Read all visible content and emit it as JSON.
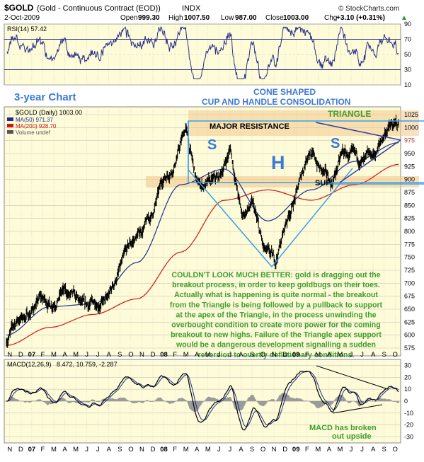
{
  "header": {
    "title_symbol": "$GOLD",
    "title_desc": "(Gold - Continuous Contract (EOD))",
    "title_exchange": "INDX",
    "date": "2-Oct-2009",
    "source": "© StockCharts.com",
    "ohlc": "Open 999.30  High 1007.50  Low 987.00  Close 1003.00  Chg +3.10 (+0.31%)",
    "ohlc_open_label": "Open",
    "ohlc_open": "999.30",
    "ohlc_high_label": "High",
    "ohlc_high": "1007.50",
    "ohlc_low_label": "Low",
    "ohlc_low": "987.00",
    "ohlc_close_label": "Close",
    "ohlc_close": "1003.00",
    "ohlc_chg_label": "Chg",
    "ohlc_chg": "+3.10 (+0.31%)",
    "up_arrow": "▲"
  },
  "rsi": {
    "label": "RSI(14) 57.42",
    "ticks": [
      "90",
      "70",
      "50",
      "30",
      "10"
    ]
  },
  "price": {
    "legend": [
      "$GOLD (Daily) 1003.00",
      "MA(50) 971.37",
      "MA(200) 928.70",
      "Volume undef"
    ],
    "legend_colors": [
      "#000000",
      "#1f2c8f",
      "#d41414",
      "#555555"
    ],
    "ticks": [
      "1025",
      "1000",
      "975",
      "950",
      "925",
      "900",
      "875",
      "850",
      "825",
      "800",
      "775",
      "750",
      "725",
      "700",
      "675",
      "650",
      "625",
      "600",
      "575"
    ],
    "highlight_tick": "975"
  },
  "macd": {
    "label_main": "MACD(12,26,9)",
    "label_values": "8.472, 10.759, -2.287",
    "ticks": [
      "30",
      "20",
      "10",
      "0",
      "-10",
      "-20",
      "-30"
    ]
  },
  "axis": {
    "months": [
      "N",
      "D",
      "07",
      "F",
      "M",
      "A",
      "M",
      "J",
      "J",
      "A",
      "S",
      "O",
      "N",
      "D",
      "08",
      "F",
      "M",
      "A",
      "M",
      "J",
      "J",
      "A",
      "S",
      "O",
      "N",
      "D",
      "09",
      "F",
      "M",
      "A",
      "M",
      "J",
      "J",
      "A",
      "S",
      "O"
    ]
  },
  "annotations": {
    "three_year": "3-year Chart",
    "cone1": "CONE SHAPED",
    "cone2": "CUP AND HANDLE CONSOLIDATION",
    "triangle": "TRIANGLE",
    "resistance": "MAJOR RESISTANCE",
    "s1": "S",
    "h": "H",
    "s2": "S",
    "sup": "SUP.",
    "commentary": [
      "COULDN'T LOOK MUCH BETTER: gold is dragging out the",
      "breakout process, in order to keep goldbugs on their toes.",
      "Actually what is happening is quite normal - the breakout",
      "from the Triangle is being followed by a pullback to support",
      "at the apex of the Triangle, in the process unwinding the",
      "overbought condition to create more power for the coming",
      "breakout to new highs. Failure of the Triangle apex support",
      "would be a dangerous development signalling a sudden",
      "reversion to overtly deflationary conditions."
    ],
    "macd_note1": "MACD has broken",
    "macd_note2": "out upside"
  },
  "colors": {
    "panel_bg": "#fdfbd8",
    "grid": "#c8c6b8",
    "price_line": "#000000",
    "ma50": "#1f2c8f",
    "ma200": "#d41414",
    "cone": "#3aa0e6",
    "annot_blue": "#3c79d6",
    "annot_green": "#3f9e2e",
    "zone": "#f3c98e",
    "triangle_lines": "#2f3ea8"
  },
  "chart_data": {
    "type": "line",
    "title": "$GOLD (Gold - Continuous Contract (EOD))",
    "x_range": [
      "2006-11",
      "2009-10"
    ],
    "ylim": [
      560,
      1040
    ],
    "series": [
      {
        "name": "$GOLD (Daily)",
        "x": [
          "2006-11",
          "2006-12",
          "2007-01",
          "2007-02",
          "2007-03",
          "2007-04",
          "2007-05",
          "2007-06",
          "2007-07",
          "2007-08",
          "2007-09",
          "2007-10",
          "2007-11",
          "2007-12",
          "2008-01",
          "2008-02",
          "2008-03",
          "2008-04",
          "2008-05",
          "2008-06",
          "2008-07",
          "2008-08",
          "2008-09",
          "2008-10",
          "2008-11",
          "2008-12",
          "2009-01",
          "2009-02",
          "2009-03",
          "2009-04",
          "2009-05",
          "2009-06",
          "2009-07",
          "2009-08",
          "2009-09",
          "2009-10"
        ],
        "values": [
          590,
          630,
          640,
          670,
          660,
          685,
          670,
          650,
          665,
          665,
          720,
          770,
          800,
          830,
          900,
          930,
          1000,
          890,
          890,
          900,
          960,
          830,
          850,
          760,
          740,
          820,
          880,
          960,
          920,
          890,
          950,
          940,
          930,
          950,
          1000,
          1003
        ]
      },
      {
        "name": "MA(50)",
        "x": [
          "2006-11",
          "2007-03",
          "2007-07",
          "2007-11",
          "2008-03",
          "2008-07",
          "2008-11",
          "2009-03",
          "2009-07",
          "2009-10"
        ],
        "values": [
          600,
          655,
          660,
          740,
          890,
          920,
          820,
          880,
          935,
          971
        ]
      },
      {
        "name": "MA(200)",
        "x": [
          "2006-11",
          "2007-03",
          "2007-07",
          "2007-11",
          "2008-03",
          "2008-07",
          "2008-11",
          "2009-03",
          "2009-07",
          "2009-10"
        ],
        "values": [
          580,
          615,
          640,
          670,
          760,
          860,
          880,
          860,
          890,
          929
        ]
      }
    ],
    "rsi": {
      "name": "RSI(14)",
      "last": 57.42,
      "ylim": [
        10,
        90
      ]
    },
    "macd": {
      "params": "12,26,9",
      "macd": 8.472,
      "signal": 10.759,
      "histogram": -2.287,
      "ylim": [
        -30,
        30
      ]
    }
  }
}
